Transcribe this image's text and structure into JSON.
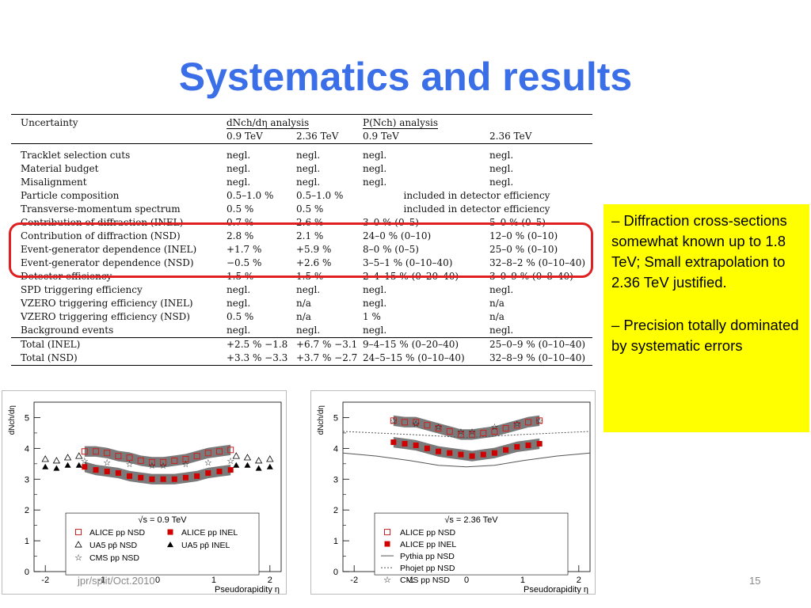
{
  "title": "Systematics and results",
  "table": {
    "header": {
      "col0": "Uncertainty",
      "group1": "dNch/dη analysis",
      "group2": "P(Nch) analysis",
      "sub": [
        "0.9 TeV",
        "2.36 TeV",
        "0.9 TeV",
        "2.36 TeV"
      ]
    },
    "rows": [
      [
        "Tracklet selection cuts",
        "negl.",
        "negl.",
        "negl.",
        "negl."
      ],
      [
        "Material budget",
        "negl.",
        "negl.",
        "negl.",
        "negl."
      ],
      [
        "Misalignment",
        "negl.",
        "negl.",
        "negl.",
        "negl."
      ],
      [
        "Particle composition",
        "0.5–1.0 %",
        "0.5–1.0 %",
        "included in detector efficiency",
        ""
      ],
      [
        "Transverse-momentum spectrum",
        "0.5 %",
        "0.5 %",
        "included in detector efficiency",
        ""
      ],
      [
        "Contribution of diffraction (INEL)",
        "0.7 %",
        "2.6 %",
        "3–0 % (0–5)",
        "5–0 % (0–5)"
      ],
      [
        "Contribution of diffraction (NSD)",
        "2.8 %",
        "2.1 %",
        "24–0 % (0–10)",
        "12–0 % (0–10)"
      ],
      [
        "Event-generator dependence (INEL)",
        "+1.7 %",
        "+5.9 %",
        "8–0 % (0–5)",
        "25–0 % (0–10)"
      ],
      [
        "Event-generator dependence (NSD)",
        "−0.5 %",
        "+2.6 %",
        "3–5–1 % (0–10–40)",
        "32–8–2 % (0–10–40)"
      ],
      [
        "Detector efficiency",
        "1.5 %",
        "1.5 %",
        "2–4–15 % (0–20–40)",
        "3–0–9 % (0–8–40)"
      ],
      [
        "SPD triggering efficiency",
        "negl.",
        "negl.",
        "negl.",
        "negl."
      ],
      [
        "VZERO triggering efficiency (INEL)",
        "negl.",
        "n/a",
        "negl.",
        "n/a"
      ],
      [
        "VZERO triggering efficiency (NSD)",
        "0.5 %",
        "n/a",
        "1 %",
        "n/a"
      ],
      [
        "Background events",
        "negl.",
        "negl.",
        "negl.",
        "negl."
      ]
    ],
    "totals": [
      [
        "Total (INEL)",
        "+2.5 % −1.8",
        "+6.7 % −3.1",
        "9–4–15 % (0–20–40)",
        "25–0–9 % (0–10–40)"
      ],
      [
        "Total (NSD)",
        "+3.3 % −3.3",
        "+3.7 % −2.7",
        "24–5–15 % (0–10–40)",
        "32–8–9 % (0–10–40)"
      ]
    ]
  },
  "callout": {
    "p1": "– Diffraction cross-sections somewhat known up to 1.8 TeV; Small extrapolation to 2.36 TeV justified.",
    "p2": "– Precision totally dominated by systematic errors"
  },
  "chart_data": [
    {
      "type": "scatter",
      "ylabel": "dNch/dη",
      "xlabel": "Pseudorapidity η",
      "xlim": [
        -2.2,
        2.2
      ],
      "ylim": [
        0,
        5.5
      ],
      "xticks": [
        "-2",
        "-1",
        "0",
        "1",
        "2"
      ],
      "yticks": [
        "0",
        "1",
        "2",
        "3",
        "4",
        "5"
      ],
      "legend_title": "√s = 0.9 TeV",
      "x": [
        -1.3,
        -1.1,
        -0.9,
        -0.7,
        -0.5,
        -0.3,
        -0.1,
        0.1,
        0.3,
        0.5,
        0.7,
        0.9,
        1.1,
        1.3
      ],
      "series": [
        {
          "name": "ALICE pp NSD",
          "marker": "open-square",
          "color": "#d02020",
          "values": [
            3.9,
            3.9,
            3.85,
            3.75,
            3.7,
            3.6,
            3.55,
            3.55,
            3.6,
            3.65,
            3.75,
            3.85,
            3.9,
            3.95
          ]
        },
        {
          "name": "ALICE pp INEL",
          "marker": "filled-square",
          "color": "#d00000",
          "values": [
            3.4,
            3.3,
            3.25,
            3.2,
            3.1,
            3.05,
            3.0,
            3.0,
            3.0,
            3.05,
            3.1,
            3.2,
            3.25,
            3.3
          ]
        },
        {
          "name": "UA5 pp̄ NSD",
          "marker": "open-triangle",
          "color": "#000000",
          "x": [
            -2.0,
            -1.8,
            -1.6,
            -1.4,
            1.4,
            1.6,
            1.8,
            2.0
          ],
          "values": [
            3.65,
            3.6,
            3.7,
            3.75,
            3.75,
            3.7,
            3.6,
            3.65
          ]
        },
        {
          "name": "UA5 pp̄ INEL",
          "marker": "filled-triangle",
          "color": "#000000",
          "x": [
            -2.0,
            -1.8,
            -1.6,
            -1.4,
            1.4,
            1.6,
            1.8,
            2.0
          ],
          "values": [
            3.4,
            3.35,
            3.45,
            3.45,
            3.45,
            3.45,
            3.35,
            3.4
          ]
        },
        {
          "name": "CMS pp NSD",
          "marker": "open-star",
          "color": "#000000",
          "x": [
            -1.3,
            -0.9,
            -0.5,
            -0.1,
            0.1,
            0.5,
            0.9,
            1.3
          ],
          "values": [
            3.6,
            3.55,
            3.5,
            3.45,
            3.45,
            3.5,
            3.55,
            3.6
          ]
        }
      ]
    },
    {
      "type": "scatter",
      "ylabel": "dNch/dη",
      "xlabel": "Pseudorapidity η",
      "xlim": [
        -2.2,
        2.2
      ],
      "ylim": [
        0,
        5.5
      ],
      "xticks": [
        "-2",
        "-1",
        "0",
        "1",
        "2"
      ],
      "yticks": [
        "0",
        "1",
        "2",
        "3",
        "4",
        "5"
      ],
      "legend_title": "√s = 2.36 TeV",
      "x": [
        -1.3,
        -1.1,
        -0.9,
        -0.7,
        -0.5,
        -0.3,
        -0.1,
        0.1,
        0.3,
        0.5,
        0.7,
        0.9,
        1.1,
        1.3
      ],
      "series": [
        {
          "name": "ALICE pp NSD",
          "marker": "open-square",
          "color": "#d02020",
          "values": [
            4.9,
            4.85,
            4.85,
            4.75,
            4.65,
            4.55,
            4.45,
            4.45,
            4.5,
            4.55,
            4.65,
            4.75,
            4.85,
            4.9
          ]
        },
        {
          "name": "ALICE pp INEL",
          "marker": "filled-square",
          "color": "#d00000",
          "values": [
            4.2,
            4.15,
            4.1,
            4.0,
            3.9,
            3.85,
            3.8,
            3.75,
            3.8,
            3.85,
            3.95,
            4.05,
            4.1,
            4.15
          ]
        },
        {
          "name": "Pythia pp NSD",
          "marker": "solid-line",
          "color": "#555555",
          "x": [
            -2.2,
            -1.6,
            -1.0,
            -0.5,
            0,
            0.5,
            1.0,
            1.6,
            2.2
          ],
          "values": [
            3.85,
            3.75,
            3.6,
            3.45,
            3.4,
            3.45,
            3.6,
            3.75,
            3.85
          ]
        },
        {
          "name": "Phojet pp NSD",
          "marker": "dotted-line",
          "color": "#555555",
          "x": [
            -2.2,
            -1.6,
            -1.0,
            -0.5,
            0,
            0.5,
            1.0,
            1.6,
            2.2
          ],
          "values": [
            4.55,
            4.5,
            4.45,
            4.4,
            4.35,
            4.4,
            4.45,
            4.5,
            4.55
          ]
        },
        {
          "name": "CMS pp NSD",
          "marker": "open-star",
          "color": "#000000",
          "x": [
            -1.3,
            -0.9,
            -0.5,
            -0.1,
            0.1,
            0.5,
            0.9,
            1.3
          ],
          "values": [
            4.9,
            4.8,
            4.7,
            4.55,
            4.55,
            4.7,
            4.8,
            4.9
          ]
        }
      ]
    }
  ],
  "footer": {
    "left": "jpr/split/Oct.2010",
    "page": "15"
  }
}
